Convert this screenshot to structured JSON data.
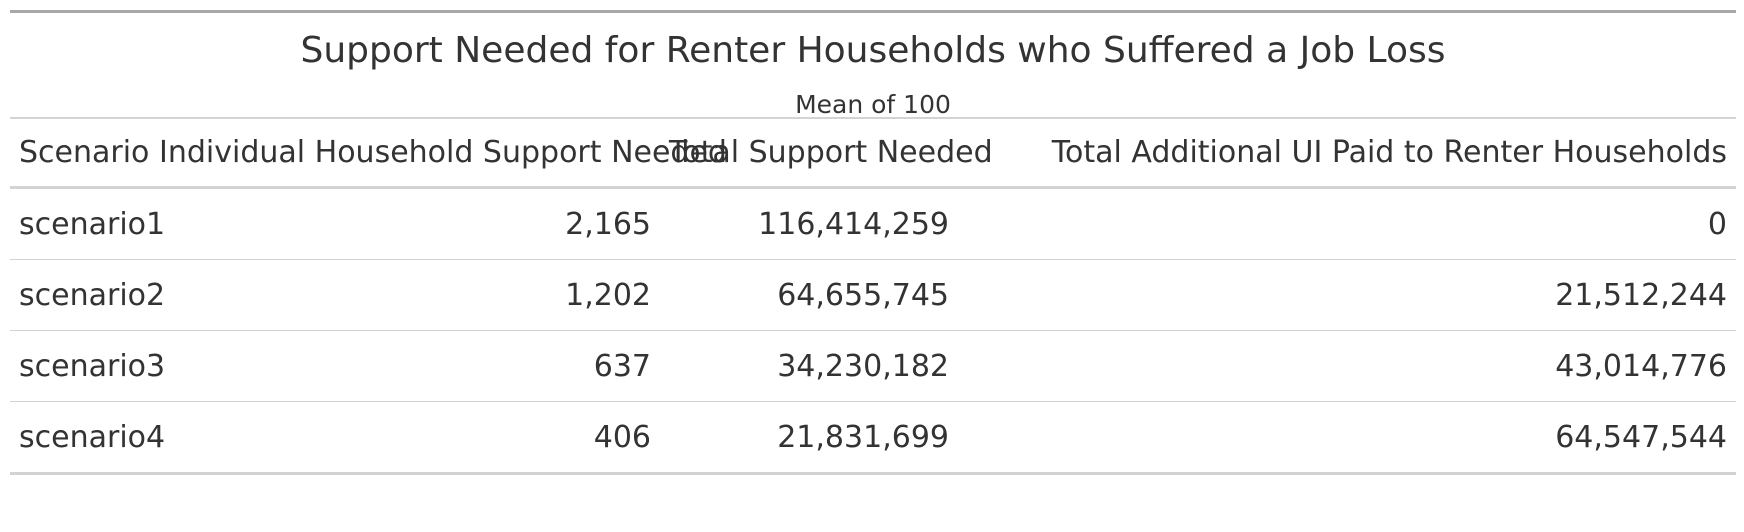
{
  "table": {
    "title": "Support Needed for Renter Households who Suffered a Job Loss",
    "subtitle": "Mean of 100",
    "columns": [
      "Scenario",
      "Individual Household Support Needed",
      "Total Support Needed",
      "Total Additional UI Paid to Renter Households"
    ],
    "rows": [
      [
        "scenario1",
        "2,165",
        "116,414,259",
        "0"
      ],
      [
        "scenario2",
        "1,202",
        "64,655,745",
        "21,512,244"
      ],
      [
        "scenario3",
        "637",
        "34,230,182",
        "43,014,776"
      ],
      [
        "scenario4",
        "406",
        "21,831,699",
        "64,547,544"
      ]
    ]
  }
}
